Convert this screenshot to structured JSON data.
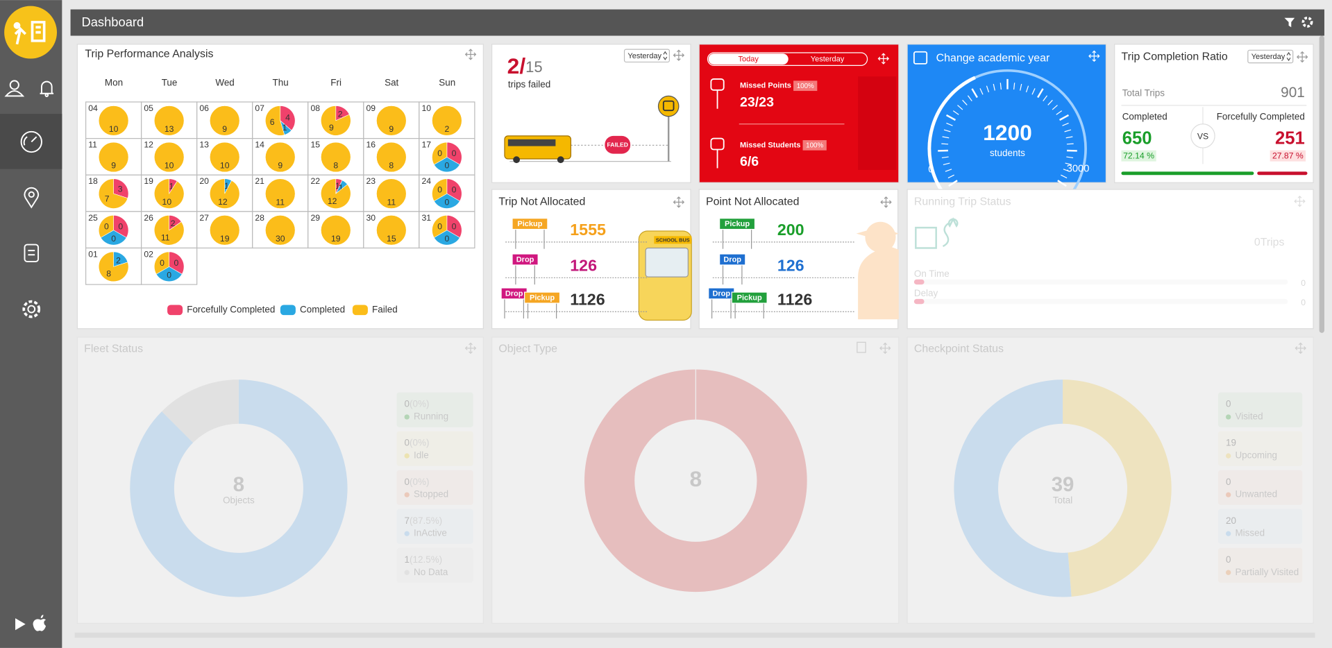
{
  "header": {
    "title": "Dashboard"
  },
  "trip_performance": {
    "title": "Trip Performance Analysis",
    "weekdays": [
      "Mon",
      "Tue",
      "Wed",
      "Thu",
      "Fri",
      "Sat",
      "Sun"
    ],
    "legend": [
      {
        "label": "Forcefully Completed",
        "color": "#f0426b"
      },
      {
        "label": "Completed",
        "color": "#2aa8e2"
      },
      {
        "label": "Failed",
        "color": "#fbbd1a"
      }
    ],
    "days": [
      {
        "date": "04",
        "values": [
          0,
          0,
          10
        ]
      },
      {
        "date": "05",
        "values": [
          0,
          0,
          13
        ]
      },
      {
        "date": "06",
        "values": [
          0,
          0,
          9
        ]
      },
      {
        "date": "07",
        "values": [
          4,
          1,
          6
        ]
      },
      {
        "date": "08",
        "values": [
          2,
          0,
          9
        ]
      },
      {
        "date": "09",
        "values": [
          0,
          0,
          9
        ]
      },
      {
        "date": "10",
        "values": [
          0,
          0,
          2
        ]
      },
      {
        "date": "11",
        "values": [
          0,
          0,
          9
        ]
      },
      {
        "date": "12",
        "values": [
          0,
          0,
          10
        ]
      },
      {
        "date": "13",
        "values": [
          0,
          0,
          10
        ]
      },
      {
        "date": "14",
        "values": [
          0,
          0,
          9
        ]
      },
      {
        "date": "15",
        "values": [
          0,
          0,
          8
        ]
      },
      {
        "date": "16",
        "values": [
          0,
          0,
          8
        ]
      },
      {
        "date": "17",
        "values": [
          0,
          0,
          0
        ]
      },
      {
        "date": "18",
        "values": [
          3,
          0,
          7
        ]
      },
      {
        "date": "19",
        "values": [
          1,
          0,
          10
        ]
      },
      {
        "date": "20",
        "values": [
          0,
          1,
          12
        ]
      },
      {
        "date": "21",
        "values": [
          0,
          0,
          11
        ]
      },
      {
        "date": "22",
        "values": [
          1,
          1,
          12
        ]
      },
      {
        "date": "23",
        "values": [
          0,
          0,
          11
        ]
      },
      {
        "date": "24",
        "values": [
          0,
          0,
          0
        ]
      },
      {
        "date": "25",
        "values": [
          0,
          0,
          0
        ]
      },
      {
        "date": "26",
        "values": [
          2,
          0,
          11
        ]
      },
      {
        "date": "27",
        "values": [
          0,
          0,
          19
        ]
      },
      {
        "date": "28",
        "values": [
          0,
          0,
          30
        ]
      },
      {
        "date": "29",
        "values": [
          0,
          0,
          19
        ]
      },
      {
        "date": "30",
        "values": [
          0,
          0,
          15
        ]
      },
      {
        "date": "31",
        "values": [
          0,
          0,
          0
        ]
      },
      {
        "date": "01",
        "values": [
          0,
          2,
          8
        ]
      },
      {
        "date": "02",
        "values": [
          0,
          0,
          0
        ]
      }
    ]
  },
  "trips_failed": {
    "failed": 2,
    "separator": "/",
    "total": 15,
    "label": "trips failed",
    "period": "Yesterday",
    "badge": "FAILED"
  },
  "missed": {
    "toggle": [
      "Today",
      "Yesterday"
    ],
    "points": {
      "label": "Missed Points",
      "percent": "100%",
      "value": "23/23"
    },
    "students": {
      "label": "Missed Students",
      "percent": "100%",
      "value": "6/6"
    }
  },
  "academic_year": {
    "title": "Change academic year",
    "value": 1200,
    "unit": "students",
    "min": 0,
    "max": 3000
  },
  "completion_ratio": {
    "title": "Trip Completion Ratio",
    "period": "Yesterday",
    "total_label": "Total Trips",
    "total": 901,
    "completed_label": "Completed",
    "completed": 650,
    "completed_percent": "72.14 %",
    "vs": "VS",
    "forced_label": "Forcefully Completed",
    "forced": 251,
    "forced_percent": "27.87 %"
  },
  "trip_not_allocated": {
    "title": "Trip Not Allocated",
    "bus_text": "SCHOOL BUS",
    "rows": [
      {
        "tags": [
          "Pickup"
        ],
        "value": 1555,
        "color": "#f5a01a"
      },
      {
        "tags": [
          "Drop"
        ],
        "value": 126,
        "color": "#c2187a"
      },
      {
        "tags": [
          "Drop",
          "Pickup"
        ],
        "value": 1126,
        "color": "#333333"
      }
    ]
  },
  "point_not_allocated": {
    "title": "Point Not Allocated",
    "rows": [
      {
        "tags": [
          "Pickup"
        ],
        "value": 200,
        "color": "#1a9e2a"
      },
      {
        "tags": [
          "Drop"
        ],
        "value": 126,
        "color": "#1e6fd0"
      },
      {
        "tags": [
          "Drop",
          "Pickup"
        ],
        "value": 1126,
        "color": "#333333"
      }
    ]
  },
  "running_trip_status": {
    "title": "Running Trip Status",
    "trips": 0,
    "trips_unit": "Trips",
    "rows": [
      {
        "label": "On Time",
        "value": 0
      },
      {
        "label": "Delay",
        "value": 0
      }
    ]
  },
  "fleet_status": {
    "title": "Fleet Status",
    "total": 8,
    "total_label": "Objects",
    "items": [
      {
        "count": 0,
        "percent": "(0%)",
        "label": "Running",
        "color": "#4caf50"
      },
      {
        "count": 0,
        "percent": "(0%)",
        "label": "Idle",
        "color": "#f5d742"
      },
      {
        "count": 0,
        "percent": "(0%)",
        "label": "Stopped",
        "color": "#f08a5d"
      },
      {
        "count": 7,
        "percent": "(87.5%)",
        "label": "InActive",
        "color": "#8ac3f7"
      },
      {
        "count": 1,
        "percent": "(12.5%)",
        "label": "No Data",
        "color": "#d1d1d1"
      }
    ]
  },
  "object_type": {
    "title": "Object Type",
    "total": 8,
    "color": "#e06868"
  },
  "checkpoint_status": {
    "title": "Checkpoint Status",
    "total": 39,
    "total_label": "Total",
    "items": [
      {
        "count": 0,
        "label": "Visited",
        "color": "#4caf50"
      },
      {
        "count": 19,
        "label": "Upcoming",
        "color": "#f9d76d"
      },
      {
        "count": 0,
        "label": "Unwanted",
        "color": "#f08a5d"
      },
      {
        "count": 20,
        "label": "Missed",
        "color": "#8ac3f7"
      },
      {
        "count": 0,
        "label": "Partially Visited",
        "color": "#f0a05d"
      }
    ]
  }
}
